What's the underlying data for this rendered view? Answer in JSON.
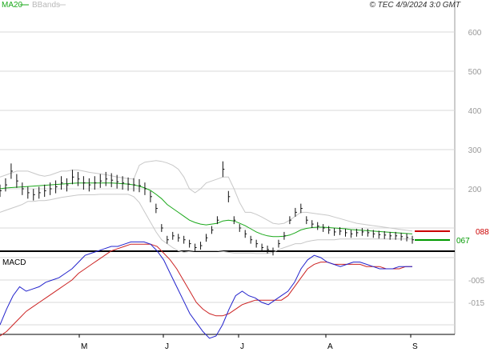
{
  "header": {
    "legend_ma20": "MA20",
    "legend_bbands": "BBands",
    "copyright": "© TEC 4/9/2024 3:0 GMT"
  },
  "colors": {
    "ma20": "#1aa81a",
    "bbands": "#c8c8c8",
    "price": "#111111",
    "macd": "#2222cc",
    "signal": "#cc2222",
    "grid": "#d8d8d8",
    "marker_red": "#cc0000",
    "marker_green": "#009900"
  },
  "price_axis": {
    "ticks": [
      "600",
      "500",
      "400",
      "300",
      "200"
    ],
    "markers": [
      {
        "label": "088",
        "color": "#cc0000"
      },
      {
        "label": "067",
        "color": "#009900"
      }
    ]
  },
  "macd_panel": {
    "title": "MACD",
    "ticks": [
      "-005",
      "-015"
    ]
  },
  "x_axis": {
    "labels": [
      "M",
      "J",
      "J",
      "A",
      "S"
    ]
  },
  "chart_data": [
    {
      "type": "line",
      "title": "",
      "legend": [
        "MA20",
        "BBands"
      ],
      "x_labels": [
        "M",
        "J",
        "J",
        "A",
        "S"
      ],
      "ylim": [
        40,
        680
      ],
      "y_ticks": [
        600,
        500,
        400,
        300,
        200
      ],
      "grid": true,
      "last_price_markers": [
        "088",
        "067"
      ],
      "series": [
        {
          "name": "price_close",
          "values": [
            195,
            210,
            245,
            220,
            200,
            190,
            185,
            190,
            195,
            200,
            205,
            215,
            210,
            230,
            225,
            215,
            210,
            215,
            220,
            225,
            222,
            218,
            215,
            212,
            210,
            208,
            200,
            180,
            150,
            100,
            70,
            80,
            75,
            70,
            60,
            50,
            55,
            75,
            95,
            120,
            250,
            180,
            120,
            100,
            85,
            70,
            60,
            50,
            45,
            40,
            60,
            80,
            120,
            140,
            150,
            120,
            110,
            105,
            100,
            95,
            90,
            92,
            88,
            85,
            88,
            90,
            88,
            85,
            83,
            82,
            80,
            80,
            78,
            76,
            70
          ]
        },
        {
          "name": "MA20",
          "values": [
            200,
            202,
            203,
            204,
            205,
            206,
            207,
            208,
            209,
            210,
            211,
            212,
            213,
            214,
            215,
            215,
            215,
            215,
            215,
            215,
            215,
            214,
            213,
            212,
            210,
            207,
            202,
            196,
            186,
            175,
            160,
            150,
            140,
            130,
            120,
            114,
            110,
            108,
            110,
            112,
            118,
            120,
            118,
            112,
            106,
            98,
            90,
            84,
            80,
            78,
            78,
            79,
            82,
            88,
            95,
            99,
            101,
            102,
            102,
            101,
            100,
            99,
            98,
            96,
            95,
            94,
            93,
            92,
            91,
            90,
            89,
            88,
            87,
            86,
            85
          ]
        },
        {
          "name": "BBands upper",
          "values": [
            230,
            235,
            240,
            245,
            245,
            245,
            240,
            235,
            232,
            235,
            240,
            245,
            245,
            248,
            248,
            245,
            242,
            240,
            238,
            236,
            233,
            230,
            228,
            226,
            225,
            260,
            268,
            270,
            272,
            270,
            266,
            260,
            250,
            230,
            200,
            190,
            200,
            215,
            220,
            225,
            230,
            230,
            200,
            165,
            140,
            140,
            135,
            128,
            120,
            112,
            110,
            112,
            120,
            130,
            140,
            140,
            138,
            136,
            134,
            132,
            128,
            124,
            120,
            116,
            112,
            110,
            108,
            106,
            104,
            102,
            100,
            98,
            96,
            94,
            92
          ]
        },
        {
          "name": "BBands lower",
          "values": [
            140,
            145,
            150,
            155,
            160,
            168,
            168,
            170,
            170,
            172,
            175,
            178,
            180,
            182,
            184,
            185,
            185,
            185,
            186,
            186,
            186,
            186,
            186,
            186,
            180,
            165,
            140,
            115,
            90,
            70,
            60,
            50,
            42,
            38,
            40,
            42,
            42,
            42,
            42,
            42,
            40,
            38,
            36,
            36,
            36,
            36,
            35,
            35,
            35,
            38,
            45,
            50,
            55,
            60,
            60,
            65,
            68,
            70,
            70,
            70,
            70,
            72,
            72,
            72,
            72,
            72,
            72,
            72,
            72,
            72,
            72,
            72,
            72,
            72,
            72
          ]
        }
      ]
    },
    {
      "type": "line",
      "title": "MACD",
      "x_labels": [
        "M",
        "J",
        "J",
        "A",
        "S"
      ],
      "y_ticks": [
        -0.05,
        -0.15
      ],
      "ylim": [
        -0.34,
        0.15
      ],
      "series": [
        {
          "name": "macd",
          "values": [
            -0.25,
            -0.18,
            -0.12,
            -0.08,
            -0.1,
            -0.09,
            -0.08,
            -0.06,
            -0.05,
            -0.04,
            -0.02,
            0.0,
            0.03,
            0.06,
            0.07,
            0.08,
            0.09,
            0.1,
            0.1,
            0.11,
            0.12,
            0.12,
            0.12,
            0.11,
            0.08,
            0.04,
            -0.02,
            -0.08,
            -0.14,
            -0.2,
            -0.24,
            -0.28,
            -0.31,
            -0.3,
            -0.25,
            -0.18,
            -0.12,
            -0.1,
            -0.12,
            -0.13,
            -0.15,
            -0.16,
            -0.14,
            -0.12,
            -0.1,
            -0.06,
            0.0,
            0.04,
            0.06,
            0.05,
            0.03,
            0.02,
            0.01,
            0.02,
            0.03,
            0.03,
            0.02,
            0.01,
            0.0,
            0.0,
            0.0,
            0.01,
            0.01,
            0.01
          ]
        },
        {
          "name": "signal",
          "values": [
            -0.3,
            -0.28,
            -0.25,
            -0.22,
            -0.19,
            -0.17,
            -0.15,
            -0.13,
            -0.11,
            -0.09,
            -0.07,
            -0.05,
            -0.02,
            0.0,
            0.02,
            0.04,
            0.06,
            0.08,
            0.09,
            0.1,
            0.11,
            0.11,
            0.11,
            0.11,
            0.1,
            0.07,
            0.04,
            0.0,
            -0.05,
            -0.1,
            -0.15,
            -0.18,
            -0.2,
            -0.21,
            -0.21,
            -0.2,
            -0.18,
            -0.16,
            -0.15,
            -0.14,
            -0.14,
            -0.14,
            -0.14,
            -0.14,
            -0.12,
            -0.08,
            -0.04,
            0.0,
            0.02,
            0.03,
            0.03,
            0.02,
            0.02,
            0.02,
            0.02,
            0.02,
            0.01,
            0.01,
            0.01,
            0.0,
            0.0,
            0.0,
            0.01,
            0.01
          ]
        }
      ]
    }
  ]
}
